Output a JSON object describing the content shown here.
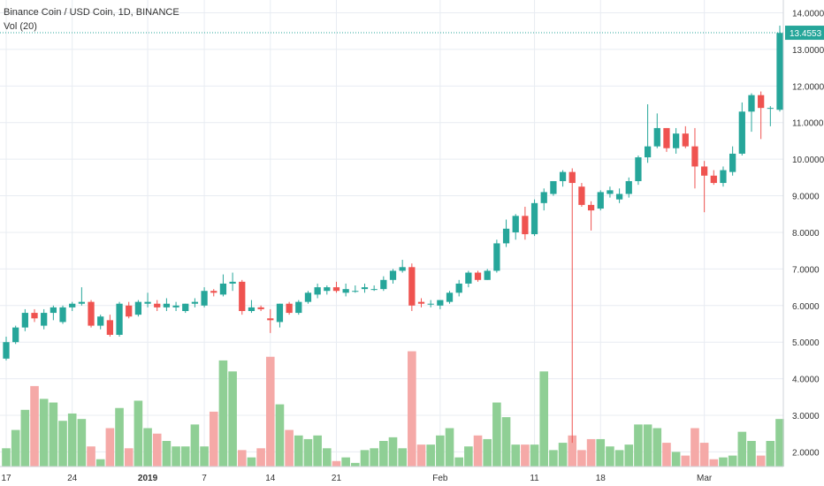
{
  "legend": {
    "title": "Binance Coin / USD Coin, 1D, BINANCE",
    "volume": "Vol (20)"
  },
  "colors": {
    "up": "#26a69a",
    "down": "#ef5350",
    "vol_up": "#8fcf95",
    "vol_down": "#f5a9a7",
    "grid": "#e8ecf2",
    "last_price_line": "#26a69a"
  },
  "last_price": {
    "value": 13.4553,
    "label": "13.4553"
  },
  "chart_data": {
    "type": "candlestick",
    "title": "Binance Coin / USD Coin, 1D, BINANCE",
    "ylim": [
      1.6,
      14.35
    ],
    "y_ticks": [
      "2.0000",
      "3.0000",
      "4.0000",
      "5.0000",
      "6.0000",
      "7.0000",
      "8.0000",
      "9.0000",
      "10.0000",
      "11.0000",
      "12.0000",
      "13.0000",
      "14.0000"
    ],
    "y_tick_values": [
      2,
      3,
      4,
      5,
      6,
      7,
      8,
      9,
      10,
      11,
      12,
      13,
      14
    ],
    "x_ticks": [
      {
        "label": "17",
        "index": 0,
        "bold": false
      },
      {
        "label": "24",
        "index": 7,
        "bold": false
      },
      {
        "label": "2019",
        "index": 15,
        "bold": true
      },
      {
        "label": "7",
        "index": 21,
        "bold": false
      },
      {
        "label": "14",
        "index": 28,
        "bold": false
      },
      {
        "label": "21",
        "index": 35,
        "bold": false
      },
      {
        "label": "Feb",
        "index": 46,
        "bold": false
      },
      {
        "label": "11",
        "index": 56,
        "bold": false
      },
      {
        "label": "18",
        "index": 63,
        "bold": false
      },
      {
        "label": "Mar",
        "index": 74,
        "bold": false
      }
    ],
    "candles": [
      [
        4.55,
        5.15,
        4.5,
        5.0
      ],
      [
        5.0,
        5.45,
        4.95,
        5.4
      ],
      [
        5.4,
        5.9,
        5.3,
        5.8
      ],
      [
        5.8,
        5.9,
        5.55,
        5.65
      ],
      [
        5.45,
        5.9,
        5.35,
        5.8
      ],
      [
        5.8,
        6.0,
        5.6,
        5.95
      ],
      [
        5.55,
        6.0,
        5.5,
        5.95
      ],
      [
        5.95,
        6.1,
        5.85,
        6.05
      ],
      [
        6.05,
        6.5,
        6.0,
        6.1
      ],
      [
        6.1,
        6.15,
        5.4,
        5.45
      ],
      [
        5.45,
        5.75,
        5.35,
        5.7
      ],
      [
        5.6,
        5.75,
        5.15,
        5.2
      ],
      [
        5.2,
        6.1,
        5.15,
        6.05
      ],
      [
        6.0,
        6.1,
        5.65,
        5.7
      ],
      [
        5.75,
        6.15,
        5.7,
        6.1
      ],
      [
        6.05,
        6.35,
        5.95,
        6.1
      ],
      [
        6.05,
        6.15,
        5.85,
        5.95
      ],
      [
        5.95,
        6.2,
        5.85,
        6.05
      ],
      [
        5.95,
        6.1,
        5.85,
        6.0
      ],
      [
        5.85,
        6.05,
        5.8,
        6.05
      ],
      [
        6.05,
        6.2,
        5.95,
        6.1
      ],
      [
        6.0,
        6.5,
        5.95,
        6.4
      ],
      [
        6.4,
        6.45,
        6.25,
        6.35
      ],
      [
        6.3,
        6.85,
        6.25,
        6.6
      ],
      [
        6.6,
        6.9,
        6.4,
        6.65
      ],
      [
        6.65,
        6.7,
        5.75,
        5.85
      ],
      [
        5.85,
        6.15,
        5.8,
        5.95
      ],
      [
        5.95,
        6.0,
        5.85,
        5.9
      ],
      [
        5.65,
        5.9,
        5.25,
        5.6
      ],
      [
        5.55,
        6.05,
        5.4,
        6.05
      ],
      [
        6.05,
        6.1,
        5.75,
        5.8
      ],
      [
        5.8,
        6.15,
        5.75,
        6.1
      ],
      [
        6.1,
        6.4,
        6.05,
        6.35
      ],
      [
        6.3,
        6.6,
        6.2,
        6.5
      ],
      [
        6.4,
        6.55,
        6.3,
        6.5
      ],
      [
        6.5,
        6.65,
        6.35,
        6.4
      ],
      [
        6.35,
        6.6,
        6.25,
        6.45
      ],
      [
        6.4,
        6.55,
        6.35,
        6.4
      ],
      [
        6.45,
        6.6,
        6.35,
        6.5
      ],
      [
        6.45,
        6.55,
        6.4,
        6.45
      ],
      [
        6.45,
        6.8,
        6.4,
        6.7
      ],
      [
        6.7,
        7.0,
        6.6,
        6.95
      ],
      [
        6.95,
        7.25,
        6.9,
        7.05
      ],
      [
        7.05,
        7.15,
        5.85,
        6.0
      ],
      [
        6.1,
        6.2,
        5.95,
        6.05
      ],
      [
        6.05,
        6.15,
        5.95,
        6.05
      ],
      [
        6.0,
        6.15,
        5.9,
        6.15
      ],
      [
        6.1,
        6.4,
        6.05,
        6.35
      ],
      [
        6.35,
        6.7,
        6.25,
        6.6
      ],
      [
        6.6,
        6.95,
        6.5,
        6.9
      ],
      [
        6.9,
        6.95,
        6.65,
        6.7
      ],
      [
        6.7,
        7.0,
        6.7,
        6.95
      ],
      [
        6.95,
        7.8,
        6.9,
        7.7
      ],
      [
        7.7,
        8.35,
        7.6,
        8.1
      ],
      [
        8.0,
        8.5,
        7.8,
        8.45
      ],
      [
        8.45,
        8.7,
        7.8,
        7.95
      ],
      [
        7.95,
        8.9,
        7.9,
        8.8
      ],
      [
        8.8,
        9.2,
        8.6,
        9.1
      ],
      [
        9.05,
        9.4,
        9.0,
        9.4
      ],
      [
        9.4,
        9.7,
        9.25,
        9.65
      ],
      [
        9.65,
        9.75,
        2.25,
        9.35
      ],
      [
        9.25,
        9.35,
        8.7,
        8.75
      ],
      [
        8.75,
        8.85,
        8.05,
        8.6
      ],
      [
        8.65,
        9.15,
        8.6,
        9.1
      ],
      [
        9.05,
        9.25,
        8.95,
        9.15
      ],
      [
        8.9,
        9.2,
        8.8,
        9.05
      ],
      [
        9.05,
        9.5,
        8.95,
        9.4
      ],
      [
        9.4,
        10.1,
        9.3,
        10.05
      ],
      [
        10.05,
        11.5,
        9.9,
        10.35
      ],
      [
        10.35,
        11.25,
        10.3,
        10.85
      ],
      [
        10.85,
        10.85,
        10.2,
        10.3
      ],
      [
        10.3,
        10.85,
        10.15,
        10.7
      ],
      [
        10.7,
        10.9,
        10.3,
        10.35
      ],
      [
        10.35,
        10.85,
        9.2,
        9.8
      ],
      [
        9.8,
        9.95,
        8.55,
        9.55
      ],
      [
        9.55,
        9.7,
        9.3,
        9.35
      ],
      [
        9.35,
        9.8,
        9.25,
        9.7
      ],
      [
        9.65,
        10.35,
        9.55,
        10.15
      ],
      [
        10.15,
        11.55,
        10.1,
        11.3
      ],
      [
        11.3,
        11.8,
        10.75,
        11.75
      ],
      [
        11.75,
        11.85,
        10.55,
        11.4
      ],
      [
        11.4,
        11.45,
        10.9,
        11.4
      ],
      [
        11.35,
        13.65,
        11.3,
        13.45
      ]
    ],
    "volume": [
      2.1,
      2.6,
      3.15,
      3.8,
      3.45,
      3.35,
      2.85,
      3.05,
      2.9,
      2.15,
      1.8,
      2.65,
      3.2,
      2.1,
      3.4,
      2.65,
      2.5,
      2.3,
      2.15,
      2.15,
      2.75,
      2.15,
      3.1,
      4.5,
      4.2,
      2.05,
      1.85,
      2.1,
      4.6,
      3.3,
      2.6,
      2.45,
      2.35,
      2.45,
      2.1,
      1.75,
      1.85,
      1.7,
      2.05,
      2.1,
      2.3,
      2.4,
      2.1,
      4.75,
      2.2,
      2.2,
      2.45,
      2.65,
      1.85,
      2.15,
      2.45,
      2.35,
      3.35,
      2.95,
      2.2,
      2.2,
      2.2,
      4.2,
      2.05,
      2.25,
      2.45,
      2.05,
      2.35,
      2.35,
      2.15,
      2.05,
      2.2,
      2.75,
      2.75,
      2.65,
      2.25,
      2.0,
      1.9,
      2.65,
      2.25,
      1.8,
      1.85,
      1.9,
      2.55,
      2.3,
      1.9,
      2.3,
      2.9
    ]
  }
}
